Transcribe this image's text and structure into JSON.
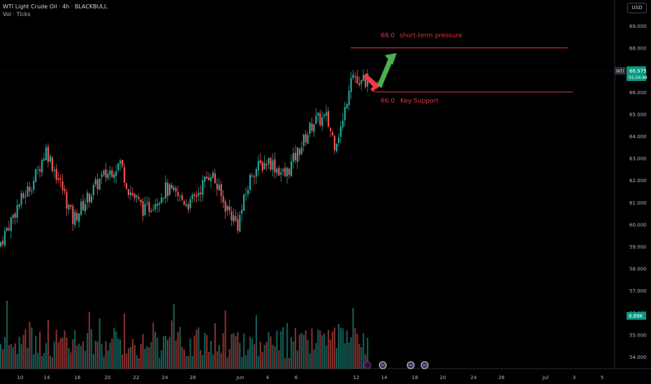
{
  "header": {
    "title": "WTI Light Crude Oil · 4h · BLACKBULL",
    "subtitle": "Vol · Ticks",
    "currency": "USD"
  },
  "colors": {
    "up": "#26a69a",
    "down": "#ef5350",
    "line": "#e0383e",
    "arrow_up": "#4caf50",
    "arrow_down": "#f23645",
    "price_tag": "#089981",
    "event": "#ffffff"
  },
  "chart_data": {
    "type": "candlestick",
    "symbol": "WTI",
    "price_ticks": [
      "69.000",
      "68.000",
      "67.000",
      "66.000",
      "65.000",
      "64.000",
      "63.000",
      "62.000",
      "61.000",
      "60.000",
      "59.000",
      "58.000",
      "57.000",
      "56.000",
      "55.000",
      "54.000"
    ],
    "ylim": [
      53.6,
      69.6
    ],
    "x_ticks": [
      "10",
      "14",
      "16",
      "20",
      "22",
      "24",
      "28",
      "Jun",
      "4",
      "6",
      "12",
      "14",
      "18",
      "20",
      "24",
      "26",
      "Jul",
      "3",
      "5"
    ],
    "last_price": "66.975",
    "countdown": "01:54:44",
    "volume_label": "8.89K",
    "annotations": [
      {
        "label": "68.0",
        "text": "short-term pressure",
        "price": 68.0
      },
      {
        "label": "66.0",
        "text": "Key Support",
        "price": 66.0
      }
    ],
    "close_path": [
      {
        "bar": 0,
        "price": 59.2
      },
      {
        "bar": 8,
        "price": 60.8
      },
      {
        "bar": 16,
        "price": 62.0
      },
      {
        "bar": 22,
        "price": 63.4
      },
      {
        "bar": 30,
        "price": 61.6
      },
      {
        "bar": 35,
        "price": 60.2
      },
      {
        "bar": 48,
        "price": 62.0
      },
      {
        "bar": 58,
        "price": 62.8
      },
      {
        "bar": 62,
        "price": 61.6
      },
      {
        "bar": 70,
        "price": 60.6
      },
      {
        "bar": 80,
        "price": 61.6
      },
      {
        "bar": 92,
        "price": 60.9
      },
      {
        "bar": 102,
        "price": 62.4
      },
      {
        "bar": 108,
        "price": 61.0
      },
      {
        "bar": 115,
        "price": 60.0
      },
      {
        "bar": 122,
        "price": 62.4
      },
      {
        "bar": 130,
        "price": 62.9
      },
      {
        "bar": 138,
        "price": 62.2
      },
      {
        "bar": 146,
        "price": 63.6
      },
      {
        "bar": 152,
        "price": 64.7
      },
      {
        "bar": 158,
        "price": 64.8
      },
      {
        "bar": 162,
        "price": 63.7
      },
      {
        "bar": 166,
        "price": 64.6
      },
      {
        "bar": 170,
        "price": 66.9
      },
      {
        "bar": 172,
        "price": 66.7
      },
      {
        "bar": 174,
        "price": 66.1
      },
      {
        "bar": 176,
        "price": 66.6
      },
      {
        "bar": 178,
        "price": 66.5
      }
    ]
  }
}
